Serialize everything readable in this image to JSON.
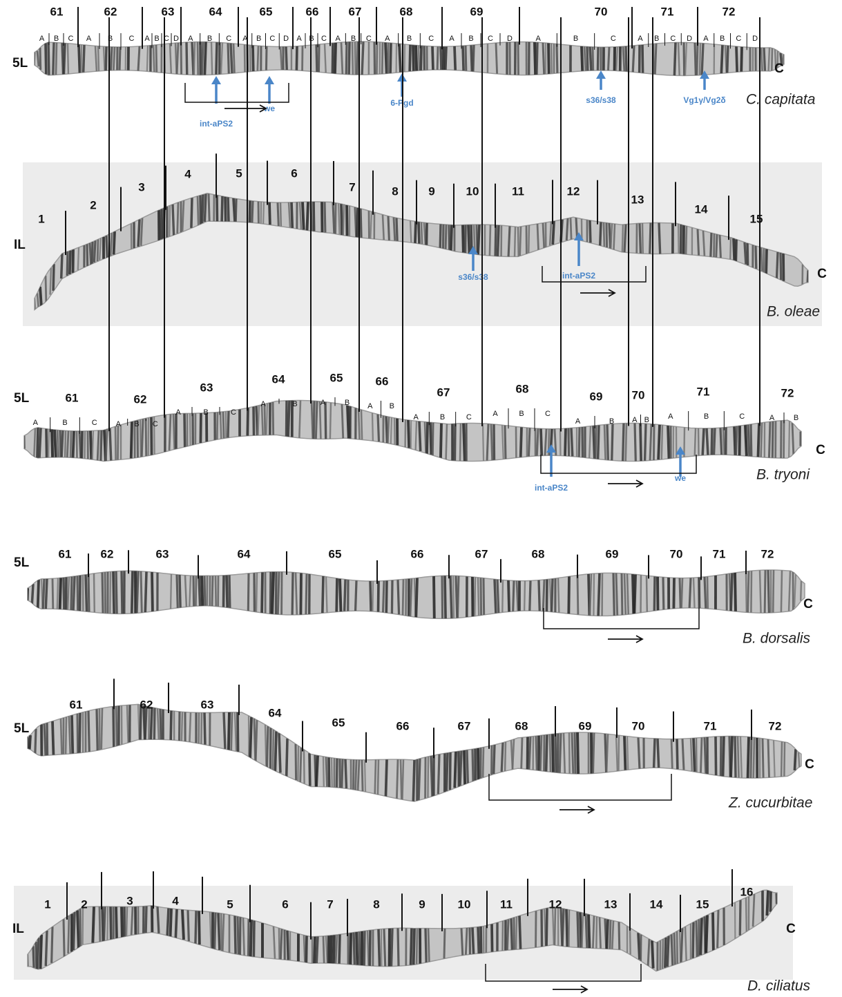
{
  "panels": [
    {
      "arm": "5L",
      "end": "C",
      "species": "C. capitata",
      "divisions": [
        "61",
        "62",
        "63",
        "64",
        "65",
        "66",
        "67",
        "68",
        "69",
        "70",
        "71",
        "72"
      ],
      "subdivisions": [
        [
          "A",
          "B",
          "C"
        ],
        [
          "A",
          "B",
          "C"
        ],
        [
          "A",
          "B",
          "C",
          "D"
        ],
        [
          "A",
          "B",
          "C"
        ],
        [
          "A",
          "B",
          "C",
          "D"
        ],
        [
          "A",
          "B",
          "C"
        ],
        [
          "A",
          "B",
          "C"
        ],
        [
          "A",
          "B",
          "C"
        ],
        [
          "A",
          "B",
          "C",
          "D"
        ],
        [
          "A",
          "B",
          "C"
        ],
        [
          "A",
          "B",
          "C",
          "D"
        ],
        [
          "A",
          "B",
          "C",
          "D"
        ]
      ],
      "genes": [
        "int-aPS2",
        "we",
        "6-Pgd",
        "s36/s38",
        "Vg1γ/Vg2δ"
      ]
    },
    {
      "arm": "IL",
      "end": "C",
      "species": "B. oleae",
      "divisions": [
        "1",
        "2",
        "3",
        "4",
        "5",
        "6",
        "7",
        "8",
        "9",
        "10",
        "11",
        "12",
        "13",
        "14",
        "15"
      ],
      "genes": [
        "s36/s38",
        "int-aPS2"
      ]
    },
    {
      "arm": "5L",
      "end": "C",
      "species": "B. tryoni",
      "divisions": [
        "61",
        "62",
        "63",
        "64",
        "65",
        "66",
        "67",
        "68",
        "69",
        "70",
        "71",
        "72"
      ],
      "subdivisions": [
        [
          "A",
          "B",
          "C"
        ],
        [
          "A",
          "B",
          "C"
        ],
        [
          "A",
          "B",
          "C"
        ],
        [
          "A",
          "B"
        ],
        [
          "A",
          "B"
        ],
        [
          "A",
          "B"
        ],
        [
          "A",
          "B",
          "C"
        ],
        [
          "A",
          "B",
          "C"
        ],
        [
          "A",
          "B"
        ],
        [
          "A",
          "B"
        ],
        [
          "A",
          "B",
          "C"
        ],
        [
          "A",
          "B"
        ]
      ],
      "genes": [
        "int-aPS2",
        "we"
      ]
    },
    {
      "arm": "5L",
      "end": "C",
      "species": "B. dorsalis",
      "divisions": [
        "61",
        "62",
        "63",
        "64",
        "65",
        "66",
        "67",
        "68",
        "69",
        "70",
        "71",
        "72"
      ]
    },
    {
      "arm": "5L",
      "end": "C",
      "species": "Z. cucurbitae",
      "divisions": [
        "61",
        "62",
        "63",
        "64",
        "65",
        "66",
        "67",
        "68",
        "69",
        "70",
        "71",
        "72"
      ]
    },
    {
      "arm": "IL",
      "end": "C",
      "species": "D. ciliatus",
      "divisions": [
        "1",
        "2",
        "3",
        "4",
        "5",
        "6",
        "7",
        "8",
        "9",
        "10",
        "11",
        "12",
        "13",
        "14",
        "15",
        "16"
      ]
    }
  ]
}
